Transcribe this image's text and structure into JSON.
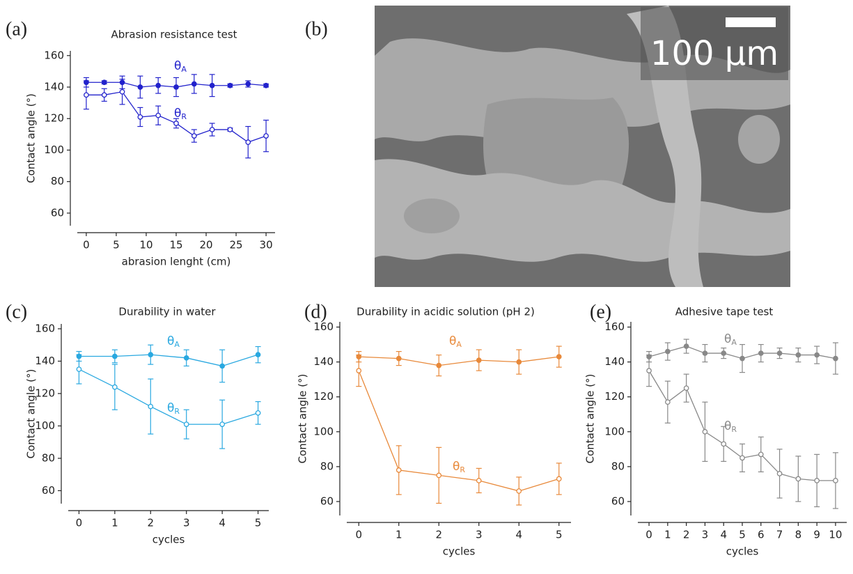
{
  "chart_data": [
    {
      "type": "line",
      "panel": "(a)",
      "title": "Abrasion resistance test",
      "xlabel": "abrasion lenght (cm)",
      "ylabel": "Contact angle (°)",
      "x": [
        0,
        3,
        6,
        9,
        12,
        15,
        18,
        21,
        24,
        27,
        30
      ],
      "xlim": [
        -1.5,
        31.5
      ],
      "xticks": [
        0,
        5,
        10,
        15,
        20,
        25,
        30
      ],
      "ylim": [
        52,
        163
      ],
      "yticks": [
        60,
        80,
        100,
        120,
        140,
        160
      ],
      "series": [
        {
          "name": "θ",
          "subscript": "A",
          "color": "#2222cc",
          "marker": "filled",
          "values": [
            143,
            143,
            143,
            140,
            141,
            140,
            142,
            141,
            141,
            142,
            141
          ],
          "errors": [
            3,
            1,
            4,
            7,
            5,
            6,
            6,
            7,
            1,
            2,
            1
          ]
        },
        {
          "name": "θ",
          "subscript": "R",
          "color": "#2222cc",
          "marker": "open",
          "values": [
            135,
            135,
            137,
            121,
            122,
            117,
            109,
            113,
            113,
            105,
            109
          ],
          "errors": [
            9,
            4,
            8,
            6,
            6,
            3,
            4,
            4,
            1,
            10,
            10
          ]
        }
      ]
    },
    {
      "type": "line",
      "panel": "(c)",
      "title": "Durability in water",
      "xlabel": "cycles",
      "ylabel": "Contact angle (°)",
      "x": [
        0,
        1,
        2,
        3,
        4,
        5
      ],
      "xlim": [
        -0.3,
        5.3
      ],
      "xticks": [
        0,
        1,
        2,
        3,
        4,
        5
      ],
      "ylim": [
        52,
        163
      ],
      "yticks": [
        60,
        80,
        100,
        120,
        140,
        160
      ],
      "series": [
        {
          "name": "θ",
          "subscript": "A",
          "color": "#29a8e0",
          "marker": "filled",
          "values": [
            143,
            143,
            144,
            142,
            137,
            144
          ],
          "errors": [
            3,
            4,
            6,
            5,
            10,
            5
          ]
        },
        {
          "name": "θ",
          "subscript": "R",
          "color": "#29a8e0",
          "marker": "open",
          "values": [
            135,
            124,
            112,
            101,
            101,
            108
          ],
          "errors": [
            9,
            14,
            17,
            9,
            15,
            7
          ]
        }
      ]
    },
    {
      "type": "line",
      "panel": "(d)",
      "title": "Durability in acidic solution (pH 2)",
      "xlabel": "cycles",
      "ylabel": "Contact angle (°)",
      "x": [
        0,
        1,
        2,
        3,
        4,
        5
      ],
      "xlim": [
        -0.3,
        5.3
      ],
      "xticks": [
        0,
        1,
        2,
        3,
        4,
        5
      ],
      "ylim": [
        52,
        163
      ],
      "yticks": [
        60,
        80,
        100,
        120,
        140,
        160
      ],
      "series": [
        {
          "name": "θ",
          "subscript": "A",
          "color": "#e8893a",
          "marker": "filled",
          "values": [
            143,
            142,
            138,
            141,
            140,
            143
          ],
          "errors": [
            3,
            4,
            6,
            6,
            7,
            6
          ]
        },
        {
          "name": "θ",
          "subscript": "R",
          "color": "#e8893a",
          "marker": "open",
          "values": [
            135,
            78,
            75,
            72,
            66,
            73
          ],
          "errors": [
            9,
            14,
            16,
            7,
            8,
            9
          ]
        }
      ]
    },
    {
      "type": "line",
      "panel": "(e)",
      "title": "Adhesive tape test",
      "xlabel": "cycles",
      "ylabel": "Contact angle (°)",
      "x": [
        0,
        1,
        2,
        3,
        4,
        5,
        6,
        7,
        8,
        9,
        10
      ],
      "xlim": [
        -0.6,
        10.6
      ],
      "xticks": [
        0,
        1,
        2,
        3,
        4,
        5,
        6,
        7,
        8,
        9,
        10
      ],
      "ylim": [
        52,
        163
      ],
      "yticks": [
        60,
        80,
        100,
        120,
        140,
        160
      ],
      "series": [
        {
          "name": "θ",
          "subscript": "A",
          "color": "#888888",
          "marker": "filled",
          "values": [
            143,
            146,
            149,
            145,
            145,
            142,
            145,
            145,
            144,
            144,
            142
          ],
          "errors": [
            3,
            5,
            4,
            5,
            3,
            8,
            5,
            3,
            4,
            5,
            9
          ]
        },
        {
          "name": "θ",
          "subscript": "R",
          "color": "#888888",
          "marker": "open",
          "values": [
            135,
            117,
            125,
            100,
            93,
            85,
            87,
            76,
            73,
            72,
            72
          ],
          "errors": [
            9,
            12,
            8,
            17,
            10,
            8,
            10,
            14,
            13,
            15,
            16
          ]
        }
      ]
    }
  ],
  "image": {
    "panel": "(b)",
    "scale_bar": "100 µm"
  }
}
